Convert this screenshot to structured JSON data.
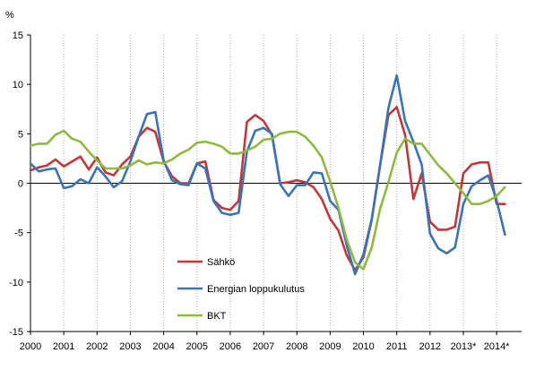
{
  "chart_data": {
    "type": "line",
    "unit_label": "%",
    "ylim": [
      -15,
      15
    ],
    "y_ticks": [
      15,
      10,
      5,
      0,
      -5,
      -10,
      -15
    ],
    "x_start": 2000,
    "x_end": 2014.75,
    "x_tick_labels": [
      "2000",
      "2001",
      "2002",
      "2003",
      "2004",
      "2005",
      "2006",
      "2007",
      "2008",
      "2009",
      "2010",
      "2011",
      "2012",
      "2013*",
      "2014*"
    ],
    "grid": true,
    "grid_style": "dotted-vertical",
    "legend_placement": "lower-left inside",
    "series": [
      {
        "name": "Sähkö",
        "color": "#c0383a",
        "values": [
          1.3,
          1.6,
          1.8,
          2.4,
          1.7,
          2.2,
          2.7,
          1.4,
          2.6,
          1.1,
          0.8,
          1.9,
          2.7,
          4.7,
          5.6,
          5.2,
          2.2,
          0.7,
          0.0,
          0.0,
          2.0,
          2.2,
          -1.7,
          -2.5,
          -2.7,
          -1.8,
          6.2,
          6.9,
          6.3,
          4.9,
          0.0,
          0.1,
          0.3,
          0.1,
          -0.4,
          -1.6,
          -3.6,
          -4.8,
          -7.3,
          -8.8,
          -7.5,
          -3.7,
          1.8,
          6.9,
          7.7,
          4.9,
          -1.6,
          1.0,
          -3.9,
          -4.7,
          -4.7,
          -4.4,
          1.0,
          1.9,
          2.1,
          2.1,
          -2.1,
          -2.1
        ]
      },
      {
        "name": "Energian loppukulutus",
        "color": "#3a74b6",
        "values": [
          2.0,
          1.2,
          1.4,
          1.5,
          -0.5,
          -0.3,
          0.4,
          0.0,
          1.6,
          0.7,
          -0.4,
          0.2,
          2.2,
          4.7,
          7.0,
          7.2,
          2.3,
          0.3,
          -0.1,
          -0.2,
          2.0,
          1.5,
          -1.8,
          -3.0,
          -3.2,
          -3.0,
          3.2,
          5.3,
          5.6,
          5.0,
          -0.1,
          -1.3,
          -0.2,
          -0.2,
          1.1,
          1.0,
          -1.8,
          -2.7,
          -6.3,
          -9.2,
          -7.2,
          -3.6,
          1.8,
          7.6,
          10.9,
          6.3,
          4.2,
          1.9,
          -5.1,
          -6.6,
          -7.1,
          -6.5,
          -2.1,
          -0.3,
          0.3,
          0.8,
          -1.7,
          -5.2
        ]
      },
      {
        "name": "BKT",
        "color": "#8fb941",
        "values": [
          3.8,
          4.0,
          4.0,
          4.9,
          5.3,
          4.5,
          4.2,
          3.2,
          2.3,
          1.5,
          1.5,
          1.5,
          1.8,
          2.3,
          1.9,
          2.1,
          2.0,
          2.4,
          3.0,
          3.4,
          4.1,
          4.2,
          4.0,
          3.7,
          3.0,
          3.0,
          3.3,
          3.7,
          4.4,
          4.5,
          5.0,
          5.2,
          5.2,
          4.7,
          3.8,
          2.6,
          0.2,
          -2.5,
          -5.7,
          -8.0,
          -8.7,
          -6.5,
          -2.6,
          0.1,
          3.1,
          4.5,
          4.0,
          4.0,
          2.9,
          1.8,
          1.0,
          0.0,
          -1.0,
          -2.1,
          -2.1,
          -1.8,
          -1.3,
          -0.4
        ]
      }
    ]
  }
}
